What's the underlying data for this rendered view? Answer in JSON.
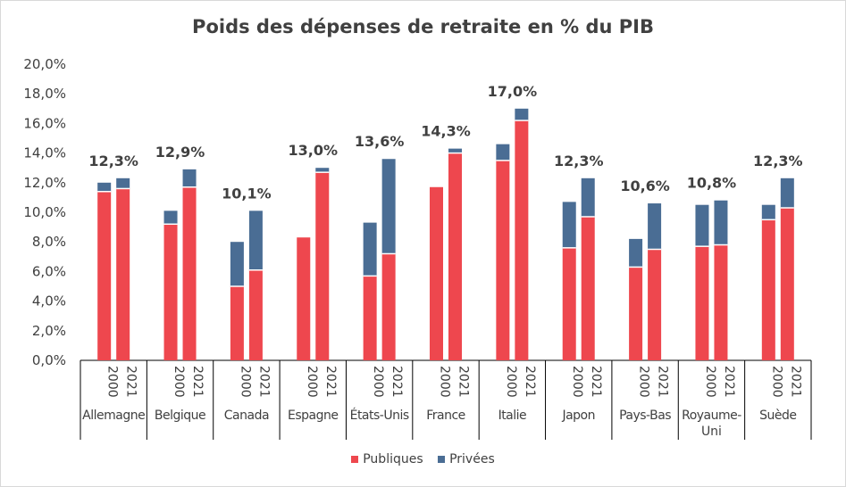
{
  "chart_data": {
    "type": "bar",
    "stacked": true,
    "title": "Poids des dépenses de retraite en % du PIB",
    "xlabel": "",
    "ylabel": "",
    "ylim": [
      0,
      20
    ],
    "yticks": [
      "0,0%",
      "2,0%",
      "4,0%",
      "6,0%",
      "8,0%",
      "10,0%",
      "12,0%",
      "14,0%",
      "16,0%",
      "18,0%",
      "20,0%"
    ],
    "years": [
      "2000",
      "2021"
    ],
    "legend_position": "bottom",
    "colors": {
      "publiques": "#ee474e",
      "privees": "#4a6d94"
    },
    "series": [
      {
        "name": "Publiques"
      },
      {
        "name": "Privées"
      }
    ],
    "countries": [
      {
        "name": "Allemagne",
        "bars": [
          {
            "publiques": 11.4,
            "privees": 0.6
          },
          {
            "publiques": 11.6,
            "privees": 0.7
          }
        ],
        "total_label": "12,3%"
      },
      {
        "name": "Belgique",
        "bars": [
          {
            "publiques": 9.2,
            "privees": 0.9
          },
          {
            "publiques": 11.7,
            "privees": 1.2
          }
        ],
        "total_label": "12,9%"
      },
      {
        "name": "Canada",
        "bars": [
          {
            "publiques": 5.0,
            "privees": 3.0
          },
          {
            "publiques": 6.1,
            "privees": 4.0
          }
        ],
        "total_label": "10,1%"
      },
      {
        "name": "Espagne",
        "bars": [
          {
            "publiques": 8.3,
            "privees": 0.0
          },
          {
            "publiques": 12.7,
            "privees": 0.3
          }
        ],
        "total_label": "13,0%"
      },
      {
        "name": "États-Unis",
        "bars": [
          {
            "publiques": 5.7,
            "privees": 3.6
          },
          {
            "publiques": 7.2,
            "privees": 6.4
          }
        ],
        "total_label": "13,6%"
      },
      {
        "name": "France",
        "bars": [
          {
            "publiques": 11.7,
            "privees": 0.0
          },
          {
            "publiques": 14.0,
            "privees": 0.3
          }
        ],
        "total_label": "14,3%"
      },
      {
        "name": "Italie",
        "bars": [
          {
            "publiques": 13.5,
            "privees": 1.1
          },
          {
            "publiques": 16.2,
            "privees": 0.8
          }
        ],
        "total_label": "17,0%"
      },
      {
        "name": "Japon",
        "bars": [
          {
            "publiques": 7.6,
            "privees": 3.1
          },
          {
            "publiques": 9.7,
            "privees": 2.6
          }
        ],
        "total_label": "12,3%"
      },
      {
        "name": "Pays-Bas",
        "bars": [
          {
            "publiques": 6.3,
            "privees": 1.9
          },
          {
            "publiques": 7.5,
            "privees": 3.1
          }
        ],
        "total_label": "10,6%"
      },
      {
        "name": "Royaume-Uni",
        "bars": [
          {
            "publiques": 7.7,
            "privees": 2.8
          },
          {
            "publiques": 7.8,
            "privees": 3.0
          }
        ],
        "total_label": "10,8%"
      },
      {
        "name": "Suède",
        "bars": [
          {
            "publiques": 9.5,
            "privees": 1.0
          },
          {
            "publiques": 10.3,
            "privees": 2.0
          }
        ],
        "total_label": "12,3%"
      }
    ]
  }
}
